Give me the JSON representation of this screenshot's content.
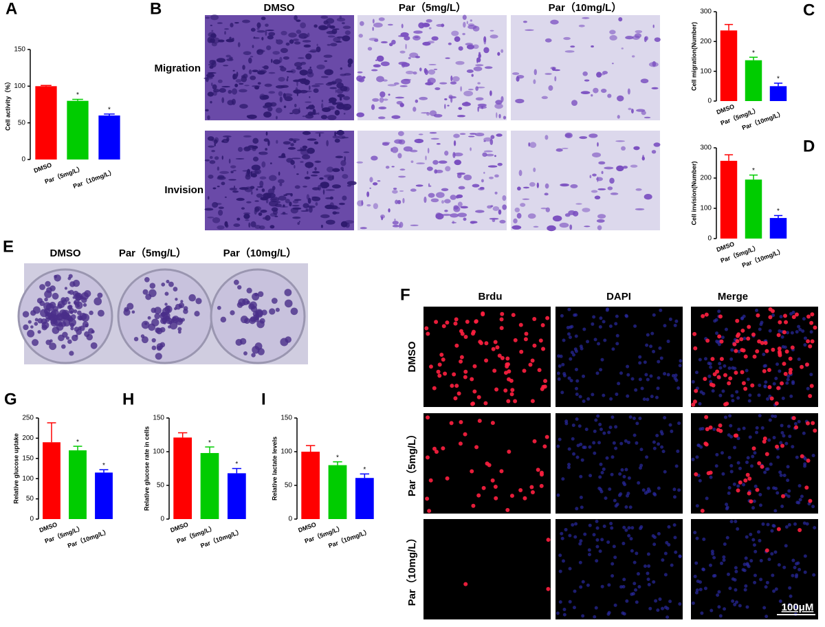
{
  "chart_data": [
    {
      "type": "bar",
      "panel": "A",
      "ylabel": "Cell activity（%）",
      "categories": [
        "DMSO",
        "Par（5mg/L）",
        "Par（10mg/L）"
      ],
      "values": [
        100,
        80,
        60
      ],
      "errors": [
        1,
        2,
        2
      ],
      "annotations": [
        null,
        "*",
        "*"
      ],
      "colors": [
        "#ff0000",
        "#00cc00",
        "#0000ff"
      ],
      "ylim": [
        0,
        150
      ],
      "yticks": [
        0,
        50,
        100,
        150
      ]
    },
    {
      "type": "bar",
      "panel": "C",
      "ylabel": "Cell migration(Number)",
      "categories": [
        "DMSO",
        "Par（5mg/L）",
        "Par（10mg/L）"
      ],
      "values": [
        237,
        137,
        50
      ],
      "errors": [
        20,
        10,
        10
      ],
      "annotations": [
        null,
        "*",
        "*"
      ],
      "colors": [
        "#ff0000",
        "#00cc00",
        "#0000ff"
      ],
      "ylim": [
        0,
        300
      ],
      "yticks": [
        0,
        100,
        200,
        300
      ]
    },
    {
      "type": "bar",
      "panel": "D",
      "ylabel": "Cell invision(Number)",
      "categories": [
        "DMSO",
        "Par（5mg/L）",
        "Par（10mg/L）"
      ],
      "values": [
        257,
        195,
        68
      ],
      "errors": [
        20,
        15,
        8
      ],
      "annotations": [
        null,
        "*",
        "*"
      ],
      "colors": [
        "#ff0000",
        "#00cc00",
        "#0000ff"
      ],
      "ylim": [
        0,
        300
      ],
      "yticks": [
        0,
        100,
        200,
        300
      ]
    },
    {
      "type": "bar",
      "panel": "G",
      "ylabel": "Relative glucose uptake",
      "categories": [
        "DMSO",
        "Par（5mg/L）",
        "Par（10mg/L）"
      ],
      "values": [
        190,
        170,
        115
      ],
      "errors": [
        48,
        10,
        7
      ],
      "annotations": [
        null,
        "*",
        "*"
      ],
      "colors": [
        "#ff0000",
        "#00cc00",
        "#0000ff"
      ],
      "ylim": [
        0,
        250
      ],
      "yticks": [
        0,
        50,
        100,
        150,
        200,
        250
      ]
    },
    {
      "type": "bar",
      "panel": "H",
      "ylabel": "Relative glucose rate in cells",
      "categories": [
        "DMSO",
        "Par（5mg/L）",
        "Par（10mg/L）"
      ],
      "values": [
        121,
        98,
        68
      ],
      "errors": [
        7,
        9,
        7
      ],
      "annotations": [
        null,
        "*",
        "*"
      ],
      "colors": [
        "#ff0000",
        "#00cc00",
        "#0000ff"
      ],
      "ylim": [
        0,
        150
      ],
      "yticks": [
        0,
        50,
        100,
        150
      ]
    },
    {
      "type": "bar",
      "panel": "I",
      "ylabel": "Relative lactate levels",
      "categories": [
        "DMSO",
        "Par（5mg/L）",
        "Par（10mg/L）"
      ],
      "values": [
        100,
        80,
        61
      ],
      "errors": [
        9,
        5,
        6
      ],
      "annotations": [
        null,
        "*",
        "*"
      ],
      "colors": [
        "#ff0000",
        "#00cc00",
        "#0000ff"
      ],
      "ylim": [
        0,
        150
      ],
      "yticks": [
        0,
        50,
        100,
        150
      ]
    }
  ],
  "panel_b": {
    "panel": "B",
    "columns": [
      "DMSO",
      "Par（5mg/L）",
      "Par（10mg/L）"
    ],
    "rows": [
      "Migration",
      "Invision"
    ]
  },
  "panel_e": {
    "panel": "E",
    "columns": [
      "DMSO",
      "Par（5mg/L）",
      "Par（10mg/L）"
    ]
  },
  "panel_f": {
    "panel": "F",
    "columns": [
      "Brdu",
      "DAPI",
      "Merge"
    ],
    "rows": [
      "DMSO",
      "Par（5mg/L）",
      "Par（10mg/L）"
    ],
    "scale_bar": "100μM"
  }
}
